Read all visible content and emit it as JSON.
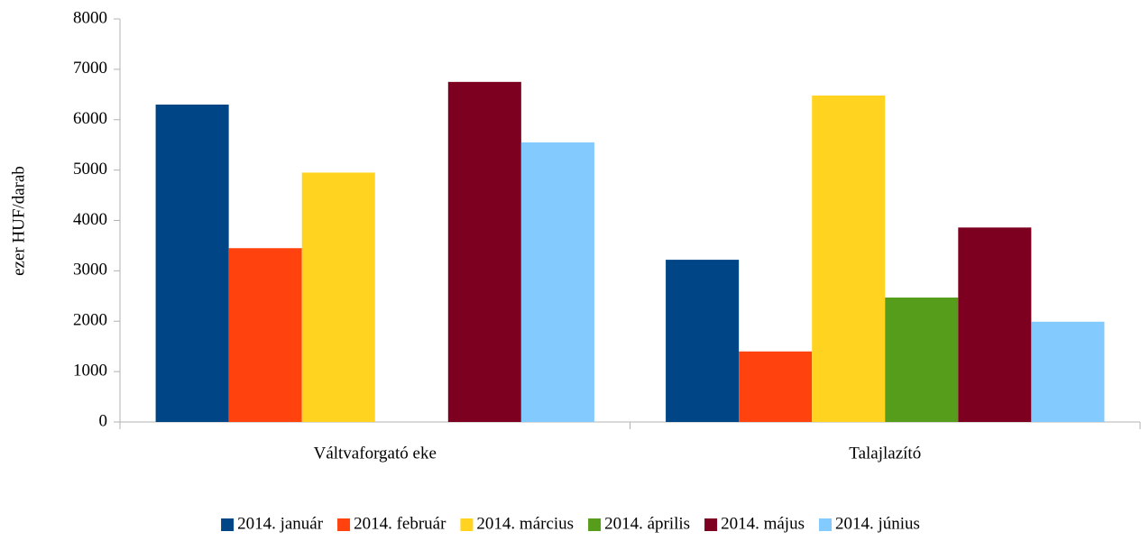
{
  "chart_data": {
    "type": "bar",
    "y_label": "ezer HUF/darab",
    "categories": [
      "Váltvaforgató eke",
      "Talajlazító"
    ],
    "series": [
      {
        "name": "2014. január",
        "color": "#004586",
        "values": [
          6300,
          3220
        ]
      },
      {
        "name": "2014. február",
        "color": "#ff420e",
        "values": [
          3450,
          1400
        ]
      },
      {
        "name": "2014. március",
        "color": "#ffd320",
        "values": [
          4950,
          6480
        ]
      },
      {
        "name": "2014. április",
        "color": "#579d1c",
        "values": [
          null,
          2470
        ]
      },
      {
        "name": "2014. május",
        "color": "#7e0021",
        "values": [
          6750,
          3860
        ]
      },
      {
        "name": "2014. június",
        "color": "#83caff",
        "values": [
          5550,
          1990
        ]
      }
    ],
    "ylim": [
      0,
      8000
    ],
    "yticks": [
      0,
      1000,
      2000,
      3000,
      4000,
      5000,
      6000,
      7000,
      8000
    ],
    "grid": false,
    "legend": "bottom"
  }
}
